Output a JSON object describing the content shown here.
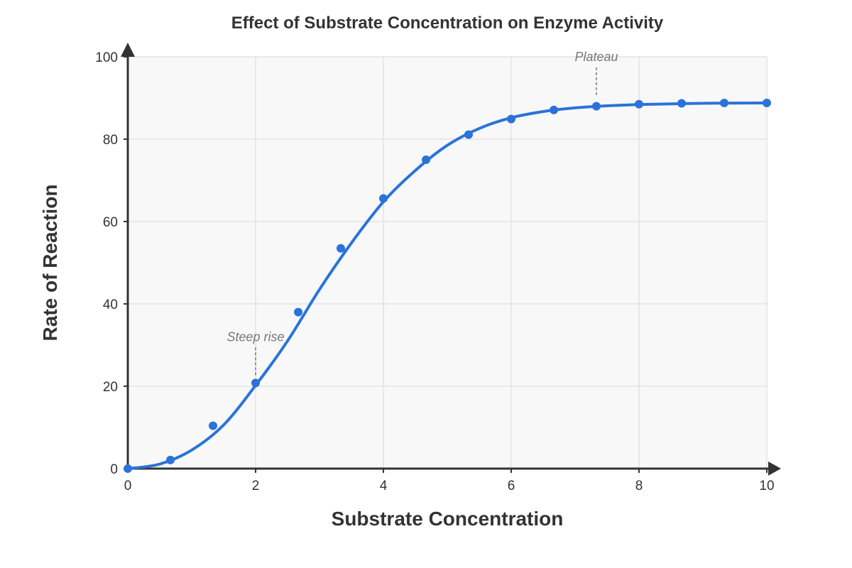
{
  "chart_data": {
    "type": "line",
    "title": "Effect of Substrate Concentration on Enzyme Activity",
    "xlabel": "Substrate Concentration",
    "ylabel": "Rate of Reaction",
    "xlim": [
      0,
      10
    ],
    "ylim": [
      0,
      100
    ],
    "xticks": [
      0,
      2,
      4,
      6,
      8,
      10
    ],
    "yticks": [
      0,
      20,
      40,
      60,
      80,
      100
    ],
    "grid": true,
    "series": [
      {
        "color": "#2a73d9",
        "points": [
          {
            "x": 0,
            "y": 0
          },
          {
            "x": 0.667,
            "y": 2.1
          },
          {
            "x": 1.333,
            "y": 10.4
          },
          {
            "x": 2.0,
            "y": 20.8
          },
          {
            "x": 2.667,
            "y": 38.0
          },
          {
            "x": 3.333,
            "y": 53.5
          },
          {
            "x": 4.0,
            "y": 65.6
          },
          {
            "x": 4.667,
            "y": 75.0
          },
          {
            "x": 5.333,
            "y": 81.1
          },
          {
            "x": 6.0,
            "y": 84.9
          },
          {
            "x": 6.667,
            "y": 87.1
          },
          {
            "x": 7.333,
            "y": 88.0
          },
          {
            "x": 8.0,
            "y": 88.5
          },
          {
            "x": 8.667,
            "y": 88.7
          },
          {
            "x": 9.333,
            "y": 88.8
          },
          {
            "x": 10.0,
            "y": 88.8
          }
        ],
        "curve": [
          {
            "x": 0,
            "y": 0
          },
          {
            "x": 0.5,
            "y": 1.1
          },
          {
            "x": 1.0,
            "y": 4.5
          },
          {
            "x": 1.5,
            "y": 10.6
          },
          {
            "x": 2.0,
            "y": 20.2
          },
          {
            "x": 2.5,
            "y": 31.0
          },
          {
            "x": 3.0,
            "y": 43.5
          },
          {
            "x": 3.5,
            "y": 54.8
          },
          {
            "x": 4.0,
            "y": 64.8
          },
          {
            "x": 4.5,
            "y": 72.4
          },
          {
            "x": 5.0,
            "y": 78.5
          },
          {
            "x": 5.5,
            "y": 82.6
          },
          {
            "x": 6.0,
            "y": 85.2
          },
          {
            "x": 6.5,
            "y": 86.7
          },
          {
            "x": 7.0,
            "y": 87.6
          },
          {
            "x": 7.5,
            "y": 88.1
          },
          {
            "x": 8.0,
            "y": 88.4
          },
          {
            "x": 9.0,
            "y": 88.7
          },
          {
            "x": 10.0,
            "y": 88.8
          }
        ]
      }
    ],
    "annotations": [
      {
        "text": "Steep rise",
        "x": 2.0,
        "y": 22
      },
      {
        "text": "Plateau",
        "x": 7.333,
        "y": 90
      }
    ]
  },
  "colors": {
    "line": "#2a73d9",
    "plot_background": "#f8f8f8",
    "grid": "#e3e3e3",
    "axis": "#333333",
    "annotation": "#777777"
  }
}
